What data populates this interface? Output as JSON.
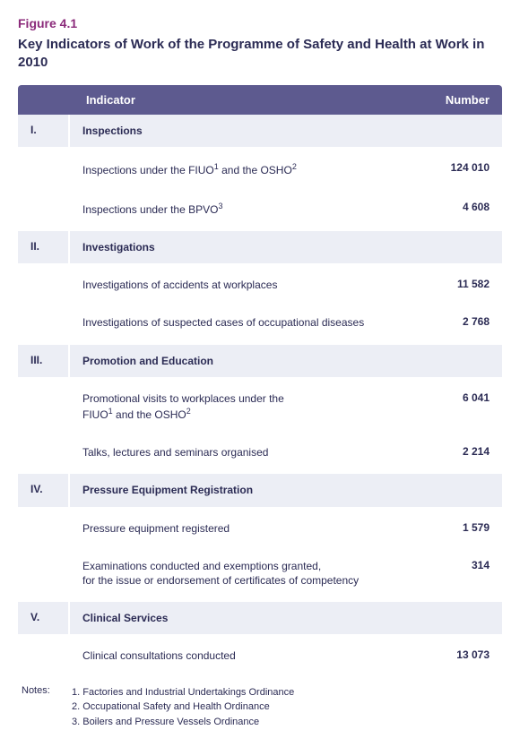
{
  "figure": {
    "number": "Figure 4.1",
    "title": "Key Indicators of Work of the Programme of Safety and Health at Work in 2010"
  },
  "header": {
    "col_indicator": "Indicator",
    "col_number": "Number"
  },
  "colors": {
    "header_bg": "#5d5a8f",
    "header_text": "#ffffff",
    "section_bg": "#eceef5",
    "text": "#2b2b54",
    "fig_num": "#8b2a7a"
  },
  "sections": [
    {
      "num": "I.",
      "title": "Inspections",
      "rows": [
        {
          "label_html": "Inspections under the FIUO<sup>1</sup> and the OSHO<sup>2</sup>",
          "value": "124 010"
        },
        {
          "label_html": "Inspections under the BPVO<sup>3</sup>",
          "value": "4 608"
        }
      ]
    },
    {
      "num": "II.",
      "title": "Investigations",
      "rows": [
        {
          "label_html": "Investigations of accidents at workplaces",
          "value": "11 582"
        },
        {
          "label_html": "Investigations of suspected cases of occupational diseases",
          "value": "2 768"
        }
      ]
    },
    {
      "num": "III.",
      "title": "Promotion and Education",
      "rows": [
        {
          "label_html": "Promotional visits to workplaces under the<br>FIUO<sup>1</sup> and the OSHO<sup>2</sup>",
          "value": "6 041"
        },
        {
          "label_html": "Talks, lectures and seminars organised",
          "value": "2 214"
        }
      ]
    },
    {
      "num": "IV.",
      "title": "Pressure Equipment Registration",
      "rows": [
        {
          "label_html": "Pressure equipment registered",
          "value": "1 579"
        },
        {
          "label_html": "Examinations conducted and exemptions granted,<br>for the issue or endorsement of certificates of competency",
          "value": "314"
        }
      ]
    },
    {
      "num": "V.",
      "title": "Clinical Services",
      "rows": [
        {
          "label_html": "Clinical consultations conducted",
          "value": "13 073"
        }
      ]
    }
  ],
  "notes": {
    "label": "Notes:",
    "items": [
      "1. Factories and Industrial Undertakings Ordinance",
      "2. Occupational Safety and Health Ordinance",
      "3. Boilers and Pressure Vessels Ordinance"
    ]
  }
}
